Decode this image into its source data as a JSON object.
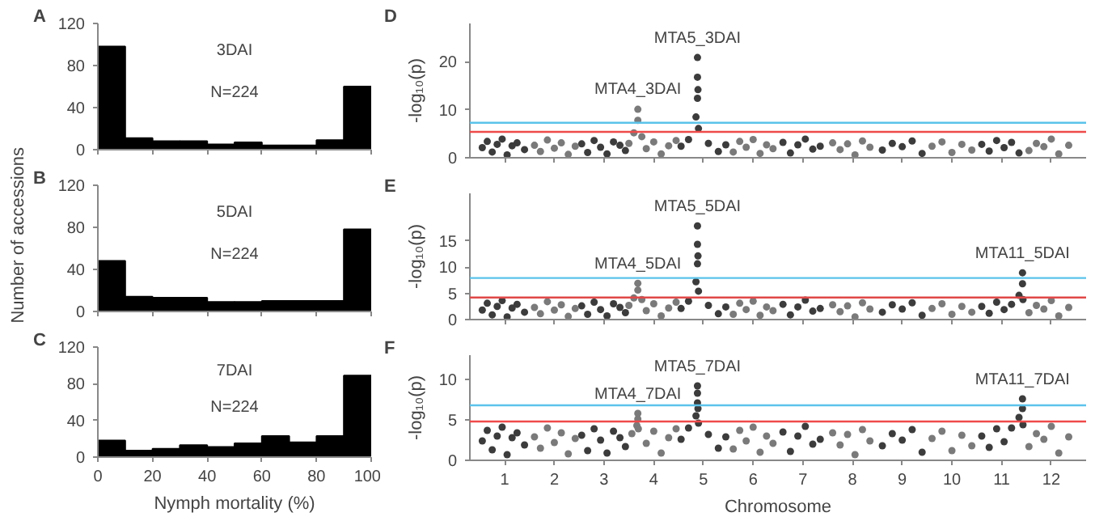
{
  "chart_data": [
    {
      "type": "histogram",
      "title": "A",
      "bins": [
        0,
        10,
        20,
        30,
        40,
        50,
        60,
        70,
        80,
        90,
        100
      ],
      "values": [
        98,
        11,
        8,
        8,
        5,
        7,
        4,
        4,
        9,
        60
      ],
      "color": "#000000",
      "xlim": [
        0,
        100
      ],
      "ylim": [
        0,
        120
      ],
      "xticks": [
        0,
        20,
        40,
        60,
        80,
        100
      ],
      "yticks": [
        0,
        40,
        80,
        120
      ],
      "tick_labels": "y",
      "annotations": [
        "3DAI",
        "N=224"
      ]
    },
    {
      "type": "histogram",
      "title": "B",
      "ylabel": "Number of accessions",
      "bins": [
        0,
        10,
        20,
        30,
        40,
        50,
        60,
        70,
        80,
        90,
        100
      ],
      "values": [
        48,
        14,
        13,
        13,
        9,
        9,
        10,
        10,
        10,
        78
      ],
      "color": "#000000",
      "xlim": [
        0,
        100
      ],
      "ylim": [
        0,
        120
      ],
      "xticks": [
        0,
        20,
        40,
        60,
        80,
        100
      ],
      "yticks": [
        0,
        40,
        80,
        120
      ],
      "tick_labels": "y",
      "annotations": [
        "5DAI",
        "N=224"
      ]
    },
    {
      "type": "histogram",
      "title": "C",
      "xlabel": "Nymph mortality (%)",
      "bins": [
        0,
        10,
        20,
        30,
        40,
        50,
        60,
        70,
        80,
        90,
        100
      ],
      "values": [
        18,
        7,
        9,
        13,
        11,
        15,
        23,
        16,
        23,
        89
      ],
      "color": "#000000",
      "xlim": [
        0,
        100
      ],
      "ylim": [
        0,
        120
      ],
      "xticks": [
        0,
        20,
        40,
        60,
        80,
        100
      ],
      "yticks": [
        0,
        40,
        80,
        120
      ],
      "annotations": [
        "7DAI",
        "N=224"
      ]
    },
    {
      "type": "scatter",
      "title": "D",
      "ylabel": "-log₁₀(p)",
      "marker": "circle",
      "xlim": [
        0.3,
        12.7
      ],
      "ylim": [
        0,
        28
      ],
      "yticks": [
        0,
        10,
        20
      ],
      "tick_labels": "y",
      "xticks": [
        1,
        2,
        3,
        4,
        5,
        6,
        7,
        8,
        9,
        10,
        11,
        12
      ],
      "series": [
        {
          "color": "#3c3c3c",
          "x": [
            0.55,
            0.65,
            0.75,
            0.85,
            0.95,
            1.05,
            1.15,
            1.25,
            1.4,
            2.55,
            2.67,
            2.8,
            2.93,
            3.06,
            3.19,
            3.32,
            3.43,
            4.55,
            4.7,
            4.85,
            4.88,
            4.88,
            4.88,
            4.89,
            4.9,
            5.1,
            5.3,
            5.45,
            6.6,
            6.75,
            6.9,
            7.05,
            7.2,
            7.35,
            8.6,
            8.8,
            9.0,
            9.2,
            9.4,
            10.6,
            10.75,
            10.9,
            11.05,
            11.2,
            11.35
          ],
          "values": [
            2.1,
            3.4,
            1.2,
            2.8,
            3.9,
            0.6,
            2.5,
            3.1,
            1.7,
            2.9,
            1.1,
            3.6,
            2.2,
            0.8,
            3.3,
            2.6,
            1.5,
            2.4,
            3.8,
            8.5,
            12.4,
            16.8,
            20.9,
            14.2,
            6.1,
            3.0,
            1.3,
            2.7,
            3.2,
            1.0,
            2.7,
            3.9,
            1.8,
            2.4,
            1.6,
            3.0,
            2.3,
            3.5,
            0.9,
            2.8,
            1.4,
            3.6,
            2.1,
            3.2,
            1.0
          ]
        },
        {
          "color": "#7a7a7a",
          "x": [
            1.6,
            1.72,
            1.86,
            2.0,
            2.14,
            2.28,
            2.42,
            3.5,
            3.6,
            3.68,
            3.68,
            3.76,
            3.85,
            4.0,
            4.15,
            4.3,
            4.45,
            5.6,
            5.73,
            5.86,
            6.0,
            6.14,
            6.27,
            6.4,
            7.6,
            7.75,
            7.9,
            8.05,
            8.2,
            8.35,
            9.6,
            9.8,
            10.0,
            10.2,
            10.4,
            11.55,
            11.7,
            11.85,
            12.0,
            12.15,
            12.35
          ],
          "values": [
            2.6,
            1.3,
            3.7,
            2.0,
            3.1,
            0.7,
            2.4,
            3.0,
            5.2,
            7.8,
            10.1,
            4.4,
            1.9,
            3.3,
            0.8,
            2.5,
            3.6,
            1.2,
            3.4,
            2.2,
            3.8,
            0.9,
            2.7,
            1.9,
            3.1,
            1.7,
            2.9,
            0.6,
            3.5,
            2.2,
            2.4,
            3.3,
            1.1,
            2.8,
            1.6,
            1.5,
            3.0,
            2.3,
            3.9,
            0.8,
            2.6
          ]
        }
      ],
      "ref_lines": [
        {
          "axis": "y",
          "value": 7.3,
          "color": "#5bc3ea"
        },
        {
          "axis": "y",
          "value": 5.4,
          "color": "#ef4a4a"
        }
      ],
      "annotations": [
        {
          "text": "MTA4_3DAI",
          "x": 3.68,
          "y": 10.3
        },
        {
          "text": "MTA5_3DAI",
          "x": 4.88,
          "y": 20.9
        }
      ]
    },
    {
      "type": "scatter",
      "title": "E",
      "ylabel": "-log₁₀(p)",
      "marker": "circle",
      "xlim": [
        0.3,
        12.7
      ],
      "ylim": [
        0,
        24
      ],
      "yticks": [
        0,
        5,
        10,
        15
      ],
      "tick_labels": "y",
      "xticks": [
        1,
        2,
        3,
        4,
        5,
        6,
        7,
        8,
        9,
        10,
        11,
        12
      ],
      "series": [
        {
          "color": "#3c3c3c",
          "x": [
            0.55,
            0.65,
            0.75,
            0.85,
            0.95,
            1.05,
            1.15,
            1.25,
            1.4,
            2.55,
            2.67,
            2.8,
            2.93,
            3.06,
            3.19,
            3.32,
            3.43,
            4.55,
            4.7,
            4.85,
            4.88,
            4.88,
            4.88,
            4.89,
            4.9,
            5.1,
            5.3,
            5.45,
            6.6,
            6.75,
            6.9,
            7.05,
            7.2,
            7.35,
            8.6,
            8.8,
            9.0,
            9.2,
            9.4,
            10.6,
            10.75,
            10.9,
            11.05,
            11.2,
            11.35,
            11.42,
            11.42,
            11.43
          ],
          "values": [
            1.8,
            3.1,
            0.9,
            2.5,
            3.6,
            0.5,
            2.2,
            2.9,
            1.4,
            2.6,
            1.0,
            3.3,
            1.9,
            0.7,
            3.0,
            2.3,
            1.3,
            2.1,
            3.5,
            7.2,
            10.6,
            14.3,
            17.8,
            12.1,
            5.4,
            2.7,
            1.1,
            2.4,
            2.9,
            0.9,
            2.4,
            3.7,
            1.6,
            2.1,
            1.4,
            2.8,
            2.0,
            3.2,
            0.8,
            2.5,
            1.2,
            3.3,
            1.9,
            2.9,
            4.6,
            6.8,
            8.9,
            3.8
          ]
        },
        {
          "color": "#7a7a7a",
          "x": [
            1.6,
            1.72,
            1.86,
            2.0,
            2.14,
            2.28,
            2.42,
            3.5,
            3.6,
            3.68,
            3.68,
            3.76,
            3.85,
            4.0,
            4.15,
            4.3,
            4.45,
            5.6,
            5.73,
            5.86,
            6.0,
            6.14,
            6.27,
            6.4,
            7.6,
            7.75,
            7.9,
            8.05,
            8.2,
            8.35,
            9.6,
            9.8,
            10.0,
            10.2,
            10.4,
            11.55,
            11.7,
            11.85,
            12.0,
            12.15,
            12.35
          ],
          "values": [
            2.3,
            1.1,
            3.4,
            1.8,
            2.8,
            0.6,
            2.1,
            2.7,
            4.1,
            5.6,
            6.9,
            3.8,
            1.7,
            3.0,
            0.7,
            2.2,
            3.3,
            1.0,
            3.1,
            1.9,
            3.5,
            0.8,
            2.4,
            1.7,
            2.8,
            1.5,
            2.6,
            0.5,
            3.2,
            2.0,
            2.1,
            3.0,
            1.0,
            2.5,
            1.4,
            1.3,
            2.7,
            2.0,
            3.6,
            0.7,
            2.3
          ]
        }
      ],
      "ref_lines": [
        {
          "axis": "y",
          "value": 7.9,
          "color": "#5bc3ea"
        },
        {
          "axis": "y",
          "value": 4.2,
          "color": "#e04848"
        }
      ],
      "annotations": [
        {
          "text": "MTA4_5DAI",
          "x": 3.68,
          "y": 7.0
        },
        {
          "text": "MTA5_5DAI",
          "x": 4.88,
          "y": 17.8
        },
        {
          "text": "MTA11_5DAI",
          "x": 11.42,
          "y": 8.9
        }
      ]
    },
    {
      "type": "scatter",
      "title": "F",
      "xlabel": "Chromosome",
      "ylabel": "-log₁₀(p)",
      "marker": "circle",
      "xlim": [
        0.3,
        12.7
      ],
      "ylim": [
        0,
        13
      ],
      "yticks": [
        0,
        5,
        10
      ],
      "xticks": [
        1,
        2,
        3,
        4,
        5,
        6,
        7,
        8,
        9,
        10,
        11,
        12
      ],
      "series": [
        {
          "color": "#3c3c3c",
          "x": [
            0.55,
            0.65,
            0.75,
            0.85,
            0.95,
            1.05,
            1.15,
            1.25,
            1.4,
            2.55,
            2.67,
            2.8,
            2.93,
            3.06,
            3.19,
            3.32,
            3.43,
            4.55,
            4.7,
            4.85,
            4.88,
            4.88,
            4.88,
            4.89,
            4.9,
            5.1,
            5.3,
            5.45,
            6.6,
            6.75,
            6.9,
            7.05,
            7.2,
            7.35,
            8.6,
            8.8,
            9.0,
            9.2,
            9.4,
            10.6,
            10.75,
            10.9,
            11.05,
            11.2,
            11.35,
            11.42,
            11.42,
            11.43
          ],
          "values": [
            2.4,
            3.7,
            1.3,
            3.0,
            4.1,
            0.7,
            2.8,
            3.4,
            1.9,
            3.1,
            1.2,
            3.9,
            2.5,
            0.9,
            3.6,
            2.8,
            1.7,
            2.6,
            4.0,
            5.5,
            7.1,
            8.3,
            9.2,
            6.4,
            4.6,
            3.2,
            1.5,
            2.9,
            3.5,
            1.1,
            3.0,
            4.2,
            2.0,
            2.6,
            1.8,
            3.3,
            2.5,
            3.8,
            1.0,
            3.0,
            1.6,
            3.9,
            2.3,
            4.0,
            5.3,
            6.4,
            7.6,
            4.4
          ]
        },
        {
          "color": "#7a7a7a",
          "x": [
            1.6,
            1.72,
            1.86,
            2.0,
            2.14,
            2.28,
            2.42,
            3.56,
            3.66,
            3.68,
            3.68,
            3.69,
            3.85,
            4.0,
            4.15,
            4.3,
            4.45,
            5.6,
            5.73,
            5.86,
            6.0,
            6.14,
            6.27,
            6.4,
            7.6,
            7.75,
            7.9,
            8.05,
            8.2,
            8.35,
            9.6,
            9.8,
            10.0,
            10.2,
            10.4,
            11.55,
            11.7,
            11.85,
            12.0,
            12.15,
            12.35
          ],
          "values": [
            2.9,
            1.5,
            4.0,
            2.2,
            3.4,
            0.8,
            2.7,
            3.3,
            4.3,
            5.1,
            5.8,
            3.9,
            2.1,
            3.6,
            0.9,
            2.8,
            3.9,
            1.4,
            3.7,
            2.4,
            4.1,
            1.0,
            3.0,
            2.1,
            3.4,
            1.9,
            3.2,
            0.7,
            3.8,
            2.4,
            2.7,
            3.6,
            1.2,
            3.1,
            1.8,
            1.7,
            3.3,
            2.6,
            4.2,
            0.9,
            2.9
          ]
        }
      ],
      "ref_lines": [
        {
          "axis": "y",
          "value": 6.8,
          "color": "#5bc3ea"
        },
        {
          "axis": "y",
          "value": 4.8,
          "color": "#ef4a4a"
        }
      ],
      "annotations": [
        {
          "text": "MTA4_7DAI",
          "x": 3.68,
          "y": 5.8
        },
        {
          "text": "MTA5_7DAI",
          "x": 4.88,
          "y": 9.2
        },
        {
          "text": "MTA11_7DAI",
          "x": 11.42,
          "y": 7.6
        }
      ]
    }
  ]
}
